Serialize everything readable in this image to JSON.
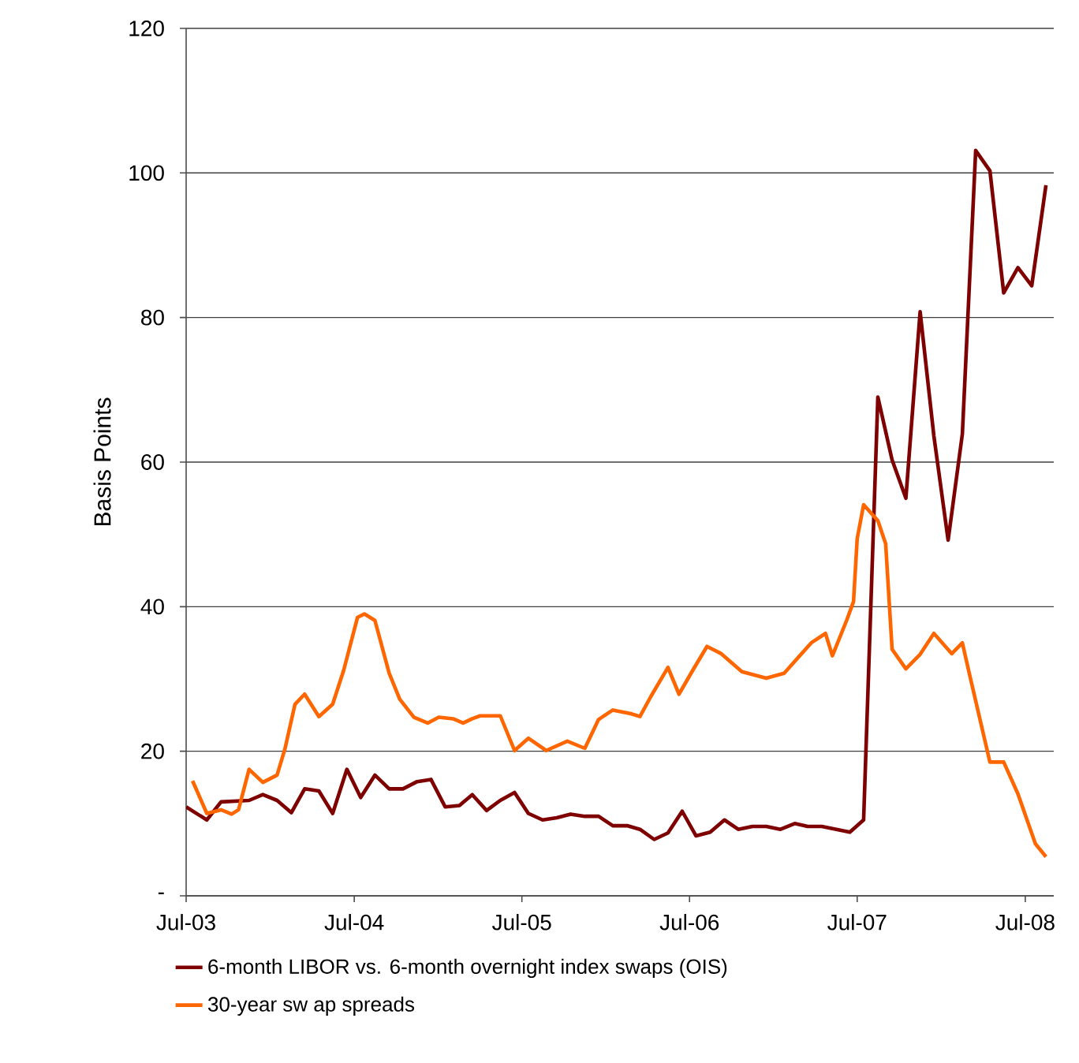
{
  "chart_data": {
    "type": "line",
    "ylabel": "Basis Points",
    "xlim": [
      "2003-07",
      "2008-09"
    ],
    "ylim": [
      0,
      120
    ],
    "xticks": [
      {
        "value": "2003-07",
        "label": "Jul-03"
      },
      {
        "value": "2004-07",
        "label": "Jul-04"
      },
      {
        "value": "2005-07",
        "label": "Jul-05"
      },
      {
        "value": "2006-07",
        "label": "Jul-06"
      },
      {
        "value": "2007-07",
        "label": "Jul-07"
      },
      {
        "value": "2008-07",
        "label": "Jul-08"
      }
    ],
    "yticks": [
      {
        "value": 0,
        "label": "-"
      },
      20,
      40,
      60,
      80,
      100,
      120
    ],
    "grid": "y",
    "legend": "bottom",
    "marker": "none",
    "line_style": "solid",
    "series": [
      {
        "name": "6-month LIBOR vs. 6-month overnight index swaps (OIS)",
        "color": "#7f0000",
        "x": [
          "2003-07-01",
          "2003-08-15",
          "2003-09-15",
          "2003-11-15",
          "2003-12-15",
          "2004-01-15",
          "2004-02-15",
          "2004-03-15",
          "2004-04-15",
          "2004-05-15",
          "2004-06-15",
          "2004-07-15",
          "2004-08-15",
          "2004-09-15",
          "2004-10-15",
          "2004-11-15",
          "2004-12-15",
          "2005-01-15",
          "2005-02-15",
          "2005-03-15",
          "2005-04-15",
          "2005-05-15",
          "2005-06-15",
          "2005-07-15",
          "2005-08-15",
          "2005-09-15",
          "2005-10-15",
          "2005-11-15",
          "2005-12-15",
          "2006-01-15",
          "2006-02-15",
          "2006-03-15",
          "2006-04-15",
          "2006-05-15",
          "2006-06-15",
          "2006-07-15",
          "2006-08-15",
          "2006-09-15",
          "2006-10-15",
          "2006-11-15",
          "2006-12-15",
          "2007-01-15",
          "2007-02-15",
          "2007-03-15",
          "2007-04-15",
          "2007-06-15",
          "2007-07-15",
          "2007-08-15",
          "2007-09-15",
          "2007-10-15",
          "2007-11-15",
          "2007-12-15",
          "2008-01-15",
          "2008-02-15",
          "2008-03-15",
          "2008-04-15",
          "2008-05-15",
          "2008-06-15",
          "2008-07-15",
          "2008-08-15"
        ],
        "values": [
          12.3,
          10.5,
          13.0,
          13.2,
          14.0,
          13.2,
          11.5,
          14.8,
          14.5,
          11.4,
          17.5,
          13.6,
          16.7,
          14.8,
          14.8,
          15.8,
          16.1,
          12.3,
          12.5,
          14.0,
          11.8,
          13.2,
          14.3,
          11.4,
          10.5,
          10.8,
          11.3,
          11.0,
          11.0,
          9.7,
          9.7,
          9.2,
          7.8,
          8.7,
          11.7,
          8.3,
          8.8,
          10.5,
          9.2,
          9.6,
          9.6,
          9.2,
          10.0,
          9.6,
          9.6,
          8.8,
          10.5,
          69.0,
          60.3,
          55.0,
          80.8,
          63.6,
          49.2,
          63.9,
          103.1,
          100.3,
          83.4,
          86.9,
          84.4,
          98.3
        ]
      },
      {
        "name": "30-year sw ap spreads",
        "color": "#ff6600",
        "x": [
          "2003-07-15",
          "2003-08-15",
          "2003-09-15",
          "2003-10-08",
          "2003-10-23",
          "2003-11-15",
          "2003-12-15",
          "2004-01-15",
          "2004-02-01",
          "2004-02-23",
          "2004-03-15",
          "2004-04-15",
          "2004-05-15",
          "2004-06-08",
          "2004-07-08",
          "2004-07-23",
          "2004-08-15",
          "2004-09-15",
          "2004-10-08",
          "2004-11-08",
          "2004-12-08",
          "2005-01-01",
          "2005-02-01",
          "2005-02-23",
          "2005-03-15",
          "2005-04-01",
          "2005-05-15",
          "2005-06-15",
          "2005-07-15",
          "2005-08-23",
          "2005-10-08",
          "2005-11-15",
          "2005-12-15",
          "2006-01-15",
          "2006-02-23",
          "2006-03-15",
          "2006-04-08",
          "2006-05-15",
          "2006-06-08",
          "2006-07-08",
          "2006-08-08",
          "2006-09-08",
          "2006-10-23",
          "2006-12-15",
          "2007-01-23",
          "2007-03-23",
          "2007-04-23",
          "2007-05-08",
          "2007-06-08",
          "2007-06-23",
          "2007-07-01",
          "2007-07-15",
          "2007-08-15",
          "2007-09-01",
          "2007-09-15",
          "2007-10-15",
          "2007-11-15",
          "2007-12-15",
          "2008-01-23",
          "2008-02-15",
          "2008-03-01",
          "2008-04-15",
          "2008-05-15",
          "2008-06-15",
          "2008-07-23",
          "2008-08-15"
        ],
        "values": [
          15.9,
          11.4,
          11.9,
          11.3,
          11.9,
          17.5,
          15.7,
          16.7,
          20.3,
          26.5,
          27.9,
          24.8,
          26.5,
          31.2,
          38.5,
          39.0,
          38.1,
          30.8,
          27.2,
          24.7,
          23.9,
          24.7,
          24.5,
          23.9,
          24.5,
          24.9,
          24.9,
          20.1,
          21.8,
          20.1,
          21.4,
          20.4,
          24.4,
          25.7,
          25.2,
          24.8,
          27.6,
          31.6,
          27.9,
          31.2,
          34.5,
          33.5,
          31.0,
          30.1,
          30.8,
          35.0,
          36.3,
          33.2,
          38.1,
          40.7,
          49.4,
          54.1,
          51.9,
          48.7,
          34.1,
          31.4,
          33.4,
          36.3,
          33.5,
          35.0,
          30.8,
          18.5,
          18.5,
          14.1,
          7.2,
          5.4
        ]
      }
    ]
  }
}
